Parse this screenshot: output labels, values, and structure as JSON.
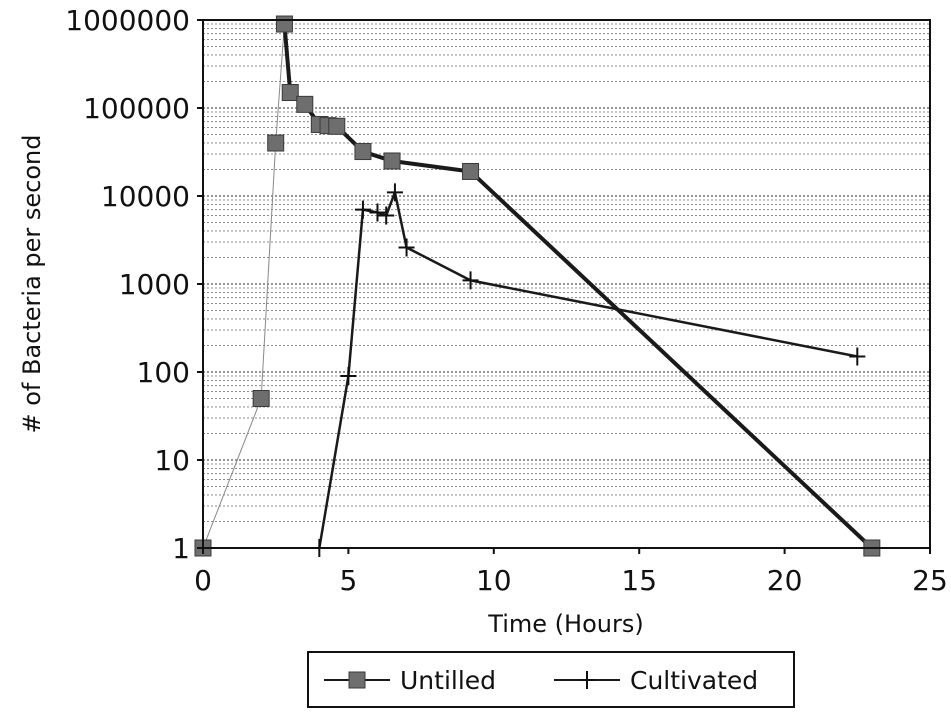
{
  "chart_data": {
    "type": "line",
    "title": "",
    "xlabel": "Time (Hours)",
    "ylabel": "# of Bacteria per second",
    "x_range": [
      0,
      25
    ],
    "y_range": [
      1,
      1000000
    ],
    "y_scale": "log",
    "grid": "horizontal minor dotted",
    "legend_position": "bottom",
    "x_ticks": [
      "0",
      "5",
      "10",
      "15",
      "20",
      "25"
    ],
    "y_ticks": [
      "1",
      "10",
      "100",
      "1000",
      "10000",
      "100000",
      "1000000"
    ],
    "series": [
      {
        "name": "Untilled",
        "marker": "square",
        "points": [
          {
            "x": 0,
            "y": 1
          },
          {
            "x": 2,
            "y": 50
          },
          {
            "x": 2.5,
            "y": 40000
          },
          {
            "x": 2.8,
            "y": 900000
          },
          {
            "x": 3,
            "y": 150000
          },
          {
            "x": 3.5,
            "y": 110000
          },
          {
            "x": 4,
            "y": 65000
          },
          {
            "x": 4.3,
            "y": 63000
          },
          {
            "x": 4.6,
            "y": 62000
          },
          {
            "x": 5.5,
            "y": 32000
          },
          {
            "x": 6.5,
            "y": 25000
          },
          {
            "x": 9.2,
            "y": 19000
          },
          {
            "x": 23,
            "y": 1
          }
        ]
      },
      {
        "name": "Cultivated",
        "marker": "cross",
        "points": [
          {
            "x": 4,
            "y": 1
          },
          {
            "x": 5,
            "y": 90
          },
          {
            "x": 5.5,
            "y": 7000
          },
          {
            "x": 6,
            "y": 6500
          },
          {
            "x": 6.3,
            "y": 6000
          },
          {
            "x": 6.6,
            "y": 11000
          },
          {
            "x": 7,
            "y": 2600
          },
          {
            "x": 9.2,
            "y": 1100
          },
          {
            "x": 22.5,
            "y": 150
          }
        ]
      }
    ]
  }
}
